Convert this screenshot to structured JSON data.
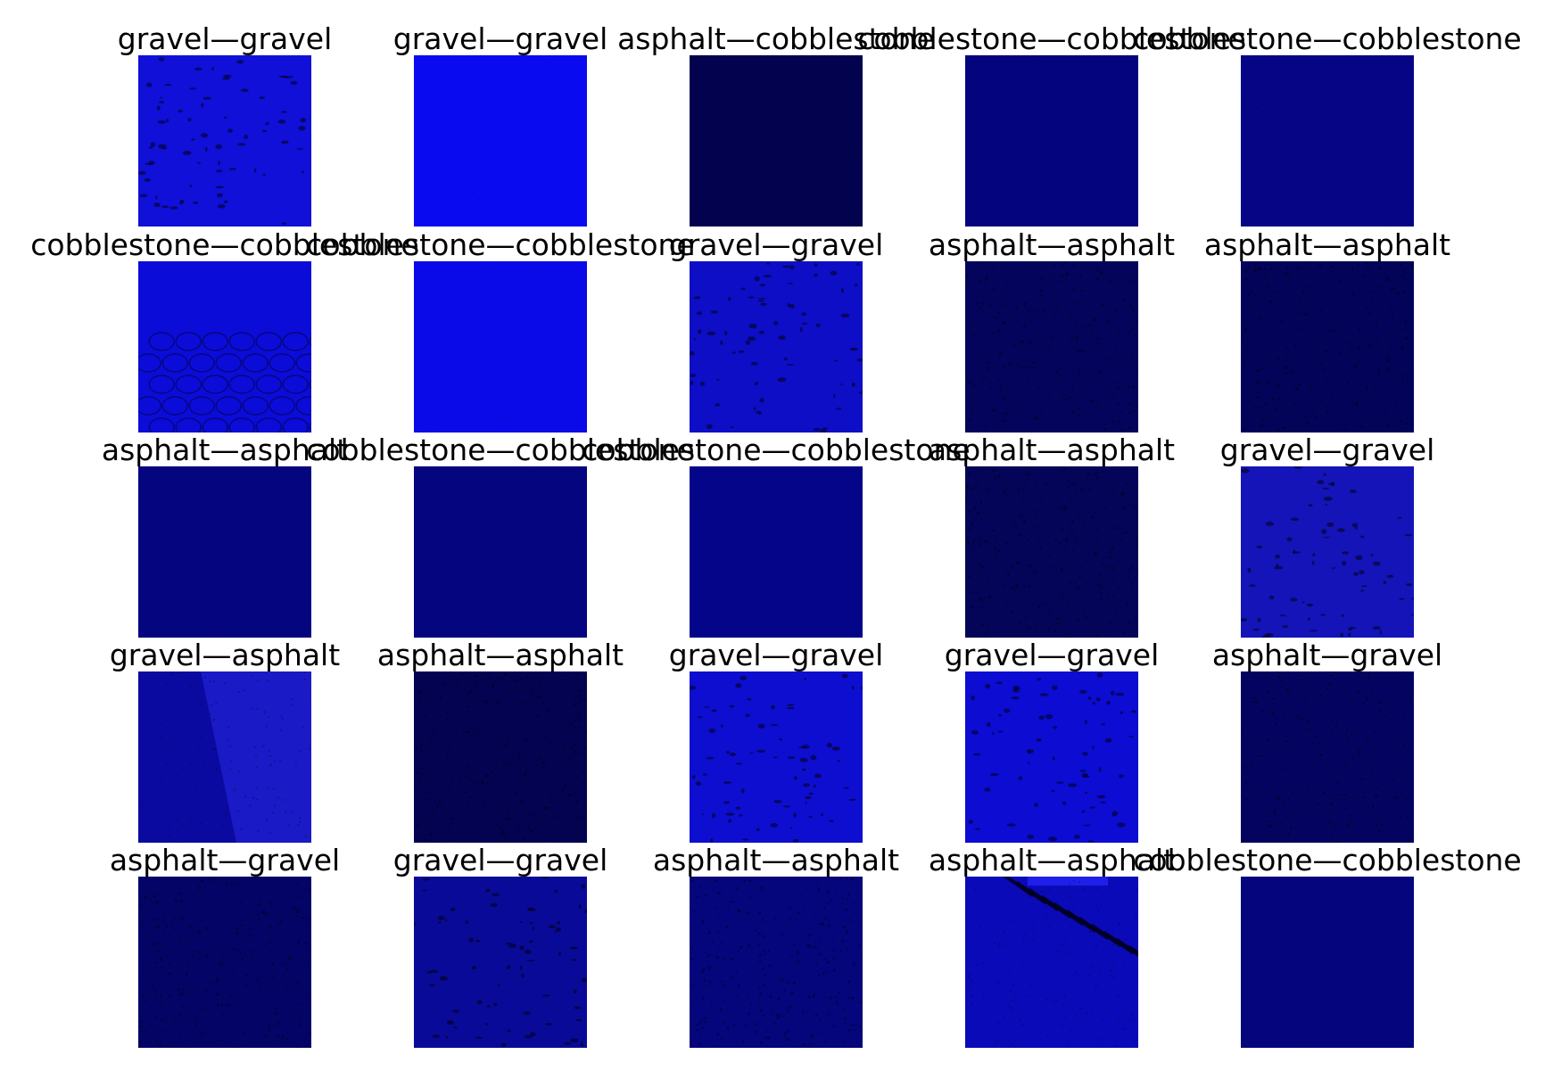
{
  "grid": {
    "rows": 5,
    "columns": 5,
    "cells": [
      {
        "label": "gravel—gravel",
        "color": "#1010d8",
        "texture": "gravel"
      },
      {
        "label": "gravel—gravel",
        "color": "#0a0af0",
        "texture": "smooth"
      },
      {
        "label": "asphalt—cobblestone",
        "color": "#02024e",
        "texture": "smooth"
      },
      {
        "label": "cobblestone—cobblestone",
        "color": "#04047e",
        "texture": "smooth"
      },
      {
        "label": "cobblestone—cobblestone",
        "color": "#050585",
        "texture": "smooth"
      },
      {
        "label": "cobblestone—cobblestone",
        "color": "#0c0cd8",
        "texture": "cobble"
      },
      {
        "label": "cobblestone—cobblestone",
        "color": "#0a0ae8",
        "texture": "smooth"
      },
      {
        "label": "gravel—gravel",
        "color": "#0e0ec6",
        "texture": "gravel"
      },
      {
        "label": "asphalt—asphalt",
        "color": "#04045c",
        "texture": "asphalt"
      },
      {
        "label": "asphalt—asphalt",
        "color": "#03035a",
        "texture": "asphalt"
      },
      {
        "label": "asphalt—asphalt",
        "color": "#050580",
        "texture": "smooth"
      },
      {
        "label": "cobblestone—cobblestone",
        "color": "#050580",
        "texture": "smooth"
      },
      {
        "label": "cobblestone—cobblestone",
        "color": "#05058a",
        "texture": "smooth"
      },
      {
        "label": "asphalt—asphalt",
        "color": "#040458",
        "texture": "asphalt"
      },
      {
        "label": "gravel—gravel",
        "color": "#1414b8",
        "texture": "gravel"
      },
      {
        "label": "gravel—asphalt",
        "color": "#0a0aa0",
        "texture": "diagonal"
      },
      {
        "label": "asphalt—asphalt",
        "color": "#030352",
        "texture": "asphalt"
      },
      {
        "label": "gravel—gravel",
        "color": "#0e0ed0",
        "texture": "gravel"
      },
      {
        "label": "gravel—gravel",
        "color": "#0c0cd2",
        "texture": "gravel"
      },
      {
        "label": "asphalt—gravel",
        "color": "#040460",
        "texture": "asphalt"
      },
      {
        "label": "asphalt—gravel",
        "color": "#040466",
        "texture": "asphalt"
      },
      {
        "label": "gravel—gravel",
        "color": "#0a0a98",
        "texture": "gravel"
      },
      {
        "label": "asphalt—asphalt",
        "color": "#05057c",
        "texture": "asphalt"
      },
      {
        "label": "asphalt—asphalt",
        "color": "#0a0ab8",
        "texture": "stripes"
      },
      {
        "label": "cobblestone—cobblestone",
        "color": "#05057e",
        "texture": "smooth"
      }
    ]
  }
}
